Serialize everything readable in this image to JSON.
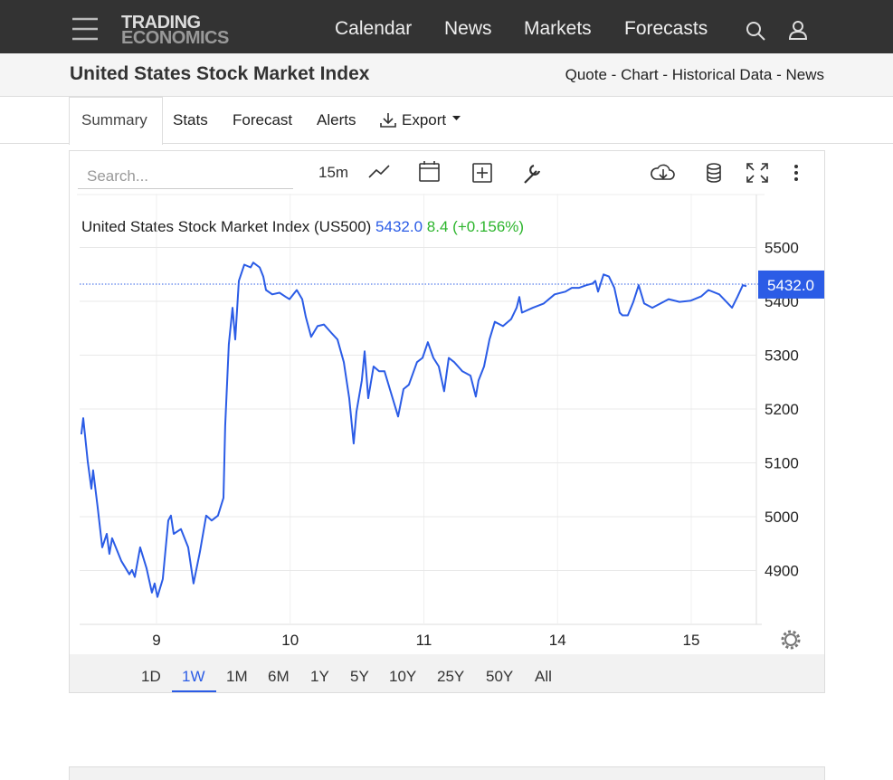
{
  "nav": {
    "logo": [
      "TRADING",
      "ECONOMICS"
    ],
    "links": [
      "Calendar",
      "News",
      "Markets",
      "Forecasts"
    ]
  },
  "header": {
    "title": "United States Stock Market Index",
    "links": [
      "Quote",
      "Chart",
      "Historical Data",
      "News"
    ],
    "separator": "-"
  },
  "tabs": [
    "Summary",
    "Stats",
    "Forecast",
    "Alerts",
    "Export"
  ],
  "toolbar": {
    "search_placeholder": "Search...",
    "interval": "15m"
  },
  "chart_data": {
    "type": "line",
    "x": [
      -0.562,
      -0.548,
      -0.514,
      -0.487,
      -0.474,
      -0.44,
      -0.406,
      -0.372,
      -0.352,
      -0.332,
      -0.264,
      -0.203,
      -0.183,
      -0.162,
      -0.122,
      -0.074,
      -0.034,
      -0.014,
      0.007,
      0.047,
      0.088,
      0.108,
      0.129,
      0.183,
      0.237,
      0.277,
      0.325,
      0.372,
      0.413,
      0.46,
      0.501,
      0.514,
      0.541,
      0.569,
      0.589,
      0.616,
      0.657,
      0.704,
      0.724,
      0.772,
      0.799,
      0.819,
      0.866,
      0.92,
      0.968,
      0.995,
      1.049,
      1.09,
      1.117,
      1.157,
      1.205,
      1.252,
      1.306,
      1.354,
      1.401,
      1.442,
      1.475,
      1.496,
      1.536,
      1.557,
      1.584,
      1.624,
      1.665,
      1.706,
      1.746,
      1.787,
      1.807,
      1.848,
      1.888,
      1.949,
      1.99,
      2.03,
      2.071,
      2.112,
      2.152,
      2.186,
      2.227,
      2.288,
      2.349,
      2.389,
      2.409,
      2.45,
      2.491,
      2.531,
      2.592,
      2.653,
      2.694,
      2.714,
      2.734,
      2.816,
      2.897,
      2.978,
      3.059,
      3.107,
      3.161,
      3.215,
      3.262,
      3.283,
      3.303,
      3.344,
      3.384,
      3.425,
      3.465,
      3.486,
      3.526,
      3.567,
      3.607,
      3.648,
      3.709,
      3.77,
      3.831,
      3.912,
      3.993,
      4.074,
      4.129,
      4.21,
      4.305,
      4.345,
      4.386,
      4.413
    ],
    "series": [
      {
        "name": "United States Stock Market Index (US500)",
        "color": "#2b5ce6",
        "values": [
          5153,
          5183,
          5102,
          5052,
          5086,
          5018,
          4943,
          4968,
          4931,
          4960,
          4918,
          4893,
          4901,
          4888,
          4943,
          4904,
          4859,
          4876,
          4851,
          4884,
          4993,
          5002,
          4968,
          4977,
          4943,
          4876,
          4935,
          5002,
          4993,
          5002,
          5035,
          5169,
          5320,
          5388,
          5329,
          5438,
          5468,
          5463,
          5472,
          5463,
          5446,
          5421,
          5413,
          5416,
          5408,
          5404,
          5421,
          5404,
          5371,
          5334,
          5354,
          5357,
          5342,
          5329,
          5287,
          5220,
          5136,
          5195,
          5253,
          5307,
          5220,
          5279,
          5270,
          5270,
          5237,
          5203,
          5186,
          5237,
          5245,
          5287,
          5295,
          5324,
          5295,
          5279,
          5233,
          5295,
          5287,
          5270,
          5262,
          5223,
          5253,
          5279,
          5329,
          5362,
          5354,
          5367,
          5388,
          5408,
          5379,
          5388,
          5396,
          5413,
          5418,
          5425,
          5425,
          5430,
          5433,
          5438,
          5418,
          5450,
          5446,
          5425,
          5379,
          5374,
          5374,
          5399,
          5430,
          5396,
          5388,
          5396,
          5404,
          5399,
          5401,
          5409,
          5421,
          5413,
          5388,
          5408,
          5430,
          5428
        ]
      }
    ],
    "last": {
      "value": 5432,
      "label": "5432.0"
    },
    "change": 8.4,
    "change_pct": {
      "value": 0.156,
      "label": "(+0.156%)"
    },
    "change_color": "#2db52d",
    "xlim": [
      -0.575,
      4.528
    ],
    "xticks": [
      {
        "value": 0,
        "label": "9"
      },
      {
        "value": 1,
        "label": "10"
      },
      {
        "value": 2,
        "label": "11"
      },
      {
        "value": 3,
        "label": "14"
      },
      {
        "value": 4,
        "label": "15"
      }
    ],
    "ylim": [
      4800,
      5600
    ],
    "yticks": [
      4900,
      5000,
      5100,
      5200,
      5300,
      5400,
      5500
    ],
    "grid": true
  },
  "ranges": [
    "1D",
    "1W",
    "1M",
    "6M",
    "1Y",
    "5Y",
    "10Y",
    "25Y",
    "50Y",
    "All"
  ]
}
